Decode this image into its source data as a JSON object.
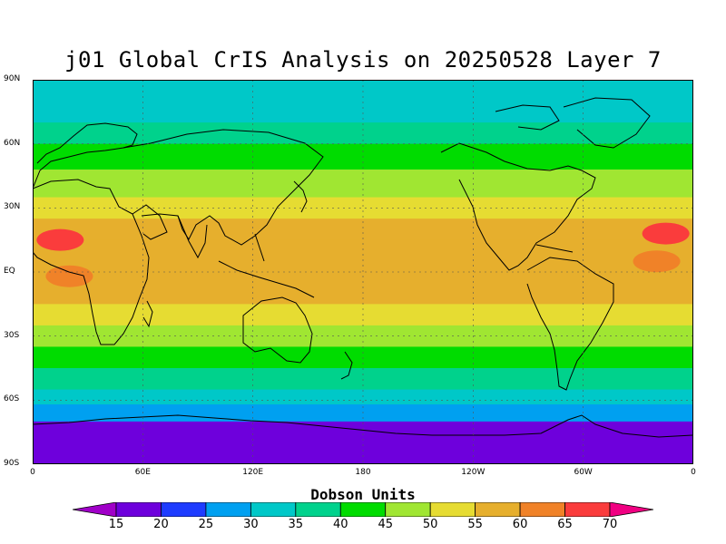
{
  "title": "j01 Global CrIS Analysis on 20250528 Layer 7",
  "map": {
    "lat_labels": [
      "90N",
      "60N",
      "30N",
      "EQ",
      "30S",
      "60S",
      "90S"
    ],
    "lon_labels": [
      "0",
      "60E",
      "120E",
      "180",
      "120W",
      "60W",
      "0"
    ],
    "lat_range": [
      -90,
      90
    ],
    "lon_range": [
      0,
      360
    ]
  },
  "colorbar": {
    "title": "Dobson Units",
    "ticks": [
      "15",
      "20",
      "25",
      "30",
      "35",
      "40",
      "45",
      "50",
      "55",
      "60",
      "65",
      "70"
    ],
    "colors": [
      "#a000c8",
      "#6e00dc",
      "#1e3cff",
      "#00a0f0",
      "#00c8c8",
      "#00d28c",
      "#00dc00",
      "#a0e632",
      "#e6dc32",
      "#e6af2d",
      "#f08228",
      "#fa3c3c",
      "#f00082"
    ]
  },
  "chart_data": {
    "type": "heatmap",
    "title": "j01 Global CrIS Analysis on 20250528 Layer 7",
    "units": "Dobson Units",
    "x_range_deg_lon": [
      0,
      360
    ],
    "y_range_deg_lat": [
      -90,
      90
    ],
    "levels": [
      15,
      20,
      25,
      30,
      35,
      40,
      45,
      50,
      55,
      60,
      65,
      70
    ],
    "zonal_bands": [
      {
        "lat": [
          70,
          90
        ],
        "value": 30
      },
      {
        "lat": [
          60,
          70
        ],
        "value": 35
      },
      {
        "lat": [
          48,
          60
        ],
        "value": 42
      },
      {
        "lat": [
          35,
          48
        ],
        "value": 47
      },
      {
        "lat": [
          25,
          35
        ],
        "value": 52
      },
      {
        "lat": [
          15,
          25
        ],
        "value": 57
      },
      {
        "lat": [
          -15,
          15
        ],
        "value": 58
      },
      {
        "lat": [
          -25,
          -15
        ],
        "value": 53
      },
      {
        "lat": [
          -35,
          -25
        ],
        "value": 48
      },
      {
        "lat": [
          -45,
          -35
        ],
        "value": 42
      },
      {
        "lat": [
          -55,
          -45
        ],
        "value": 37
      },
      {
        "lat": [
          -62,
          -55
        ],
        "value": 32
      },
      {
        "lat": [
          -70,
          -62
        ],
        "value": 27
      },
      {
        "lat": [
          -90,
          -70
        ],
        "value": 17
      }
    ],
    "hotspots": [
      {
        "name": "",
        "lon": 15,
        "lat": 15,
        "value": 67
      },
      {
        "name": "",
        "lon": 345,
        "lat": 18,
        "value": 67
      },
      {
        "name": "",
        "lon": 20,
        "lat": -2,
        "value": 63
      },
      {
        "name": "",
        "lon": 340,
        "lat": 5,
        "value": 63
      }
    ],
    "grid": true
  }
}
